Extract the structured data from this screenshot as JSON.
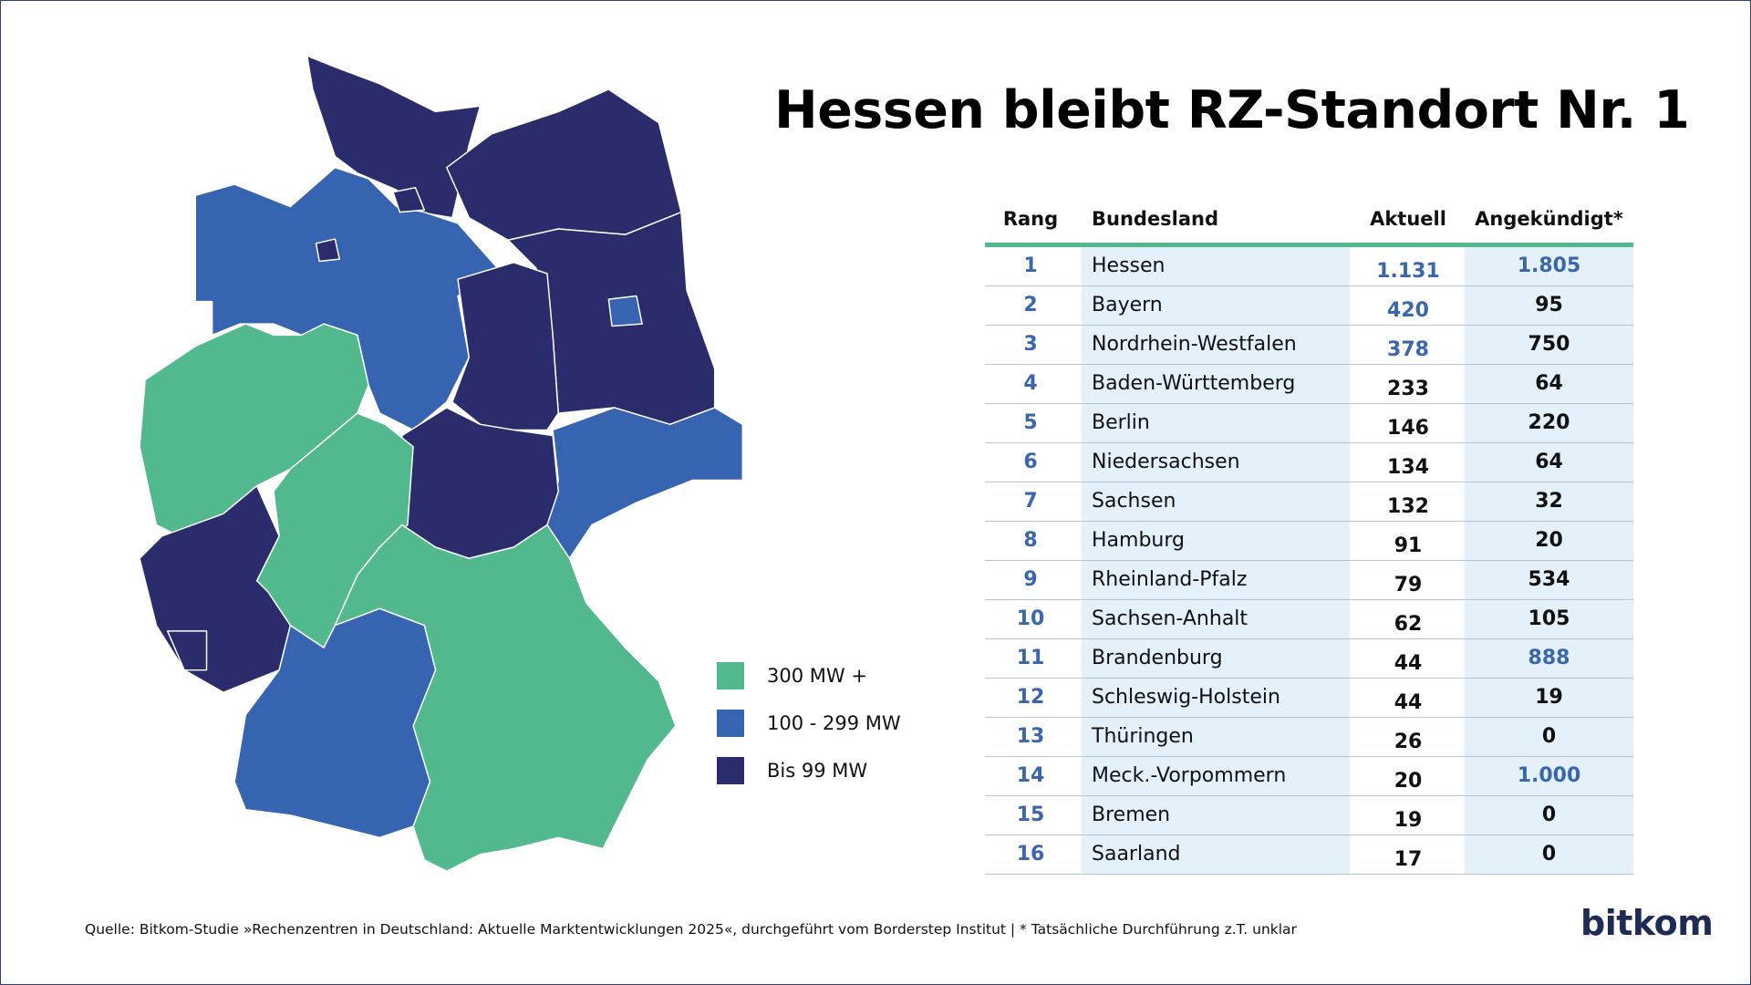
{
  "title": "Hessen bleibt RZ-Standort Nr. 1",
  "table": {
    "header": [
      "Rang",
      "Bundesland",
      "Aktuell",
      "Angekündigt*"
    ],
    "rows": [
      [
        "1",
        "Hessen",
        "1.131",
        "1.805"
      ],
      [
        "2",
        "Bayern",
        "420",
        "95"
      ],
      [
        "3",
        "Nordrhein-Westfalen",
        "378",
        "750"
      ],
      [
        "4",
        "Baden-Württemberg",
        "233",
        "64"
      ],
      [
        "5",
        "Berlin",
        "146",
        "220"
      ],
      [
        "6",
        "Niedersachsen",
        "134",
        "64"
      ],
      [
        "7",
        "Sachsen",
        "132",
        "32"
      ],
      [
        "8",
        "Hamburg",
        "91",
        "20"
      ],
      [
        "9",
        "Rheinland-Pfalz",
        "79",
        "534"
      ],
      [
        "10",
        "Sachsen-Anhalt",
        "62",
        "105"
      ],
      [
        "11",
        "Brandenburg",
        "44",
        "888"
      ],
      [
        "12",
        "Schleswig-Holstein",
        "44",
        "19"
      ],
      [
        "13",
        "Thüringen",
        "26",
        "0"
      ],
      [
        "14",
        "Meck.-Vorpommern",
        "20",
        "1.000"
      ],
      [
        "15",
        "Bremen",
        "19",
        "0"
      ],
      [
        "16",
        "Saarland",
        "17",
        "0"
      ]
    ],
    "highlight_color": "#3a66ad",
    "highlighted_cells": [
      [
        0,
        2
      ],
      [
        0,
        3
      ],
      [
        1,
        2
      ],
      [
        2,
        2
      ],
      [
        10,
        3
      ],
      [
        13,
        3
      ]
    ]
  },
  "legend": [
    {
      "label": "300 MW +",
      "color": "#52b98e"
    },
    {
      "label": "100 - 299 MW",
      "color": "#3764b0"
    },
    {
      "label": "Bis 99 MW",
      "color": "#2b2c6b"
    }
  ],
  "source": "Quelle: Bitkom-Studie »Rechenzentren in Deutschland: Aktuelle Marktentwicklungen 2025«, durchgeführt vom Borderstep Institut  | * Tatsächliche Durchführung z.T. unklar",
  "logo": "bitkom"
}
